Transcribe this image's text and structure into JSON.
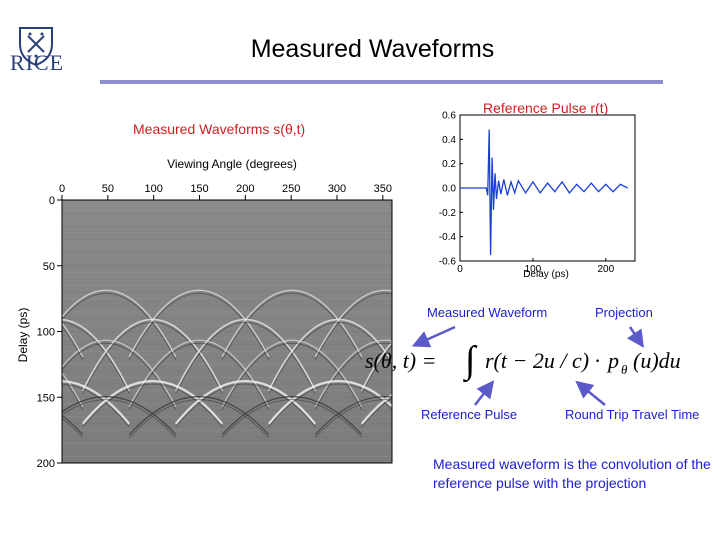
{
  "slide": {
    "title": "Measured Waveforms",
    "logo_text": "RICE",
    "accent_color": "#8d8fcf",
    "note_color": "#1c1cd6"
  },
  "left_panel": {
    "label": "Measured Waveforms s(θ,t)",
    "image_description": "grayscale radargram of overlapping arched hyperbolic echoes"
  },
  "right_panel": {
    "label": "Reference Pulse r(t)"
  },
  "equation": {
    "lhs": "s(θ, t) =",
    "integral": "∫",
    "rhs_part1": "r(t − 2u / c) ·",
    "p_symbol": "p",
    "p_subscript": "θ",
    "rhs_part2": "(u)du",
    "labels": {
      "measured_waveform": "Measured Waveform",
      "projection": "Projection",
      "reference_pulse": "Reference Pulse",
      "round_trip": "Round Trip Travel Time"
    },
    "arrow_color": "#5a5ac8"
  },
  "note": {
    "text": "Measured waveform is the convolution of the reference pulse with the projection"
  },
  "chart_data": [
    {
      "type": "heatmap",
      "title": "",
      "xlabel": "Viewing Angle (degrees)",
      "ylabel": "Delay (ps)",
      "x_ticks": [
        "0",
        "50",
        "100",
        "150",
        "200",
        "250",
        "300",
        "350"
      ],
      "y_ticks": [
        "0",
        "50",
        "100",
        "150",
        "200"
      ],
      "xlim": [
        0,
        360
      ],
      "ylim": [
        0,
        200
      ],
      "y_inverted": true,
      "x_axis_position": "top",
      "colormap": "gray"
    },
    {
      "type": "line",
      "title": "",
      "xlabel": "Delay (ps)",
      "ylabel": "",
      "x_ticks": [
        "0",
        "100",
        "200"
      ],
      "y_ticks": [
        "0.6",
        "0.4",
        "0.2",
        "0.0",
        "-0.2",
        "-0.4",
        "-0.6"
      ],
      "xlim": [
        0,
        240
      ],
      "ylim": [
        -0.6,
        0.6
      ],
      "grid": false,
      "series": [
        {
          "color": "#1a3fd6",
          "x": [
            0,
            10,
            20,
            30,
            36,
            38,
            40,
            42,
            44,
            46,
            48,
            50,
            53,
            56,
            60,
            65,
            70,
            75,
            80,
            90,
            100,
            110,
            120,
            130,
            140,
            150,
            160,
            170,
            180,
            190,
            200,
            210,
            220,
            230
          ],
          "y": [
            0.0,
            0.0,
            0.0,
            0.0,
            0.0,
            -0.06,
            0.48,
            -0.55,
            0.25,
            -0.18,
            0.12,
            -0.09,
            0.06,
            -0.05,
            0.07,
            -0.06,
            0.05,
            -0.04,
            0.06,
            -0.04,
            0.05,
            -0.04,
            0.04,
            -0.03,
            0.05,
            -0.04,
            0.03,
            -0.03,
            0.04,
            -0.03,
            0.03,
            -0.03,
            0.03,
            0.0
          ]
        }
      ]
    }
  ]
}
